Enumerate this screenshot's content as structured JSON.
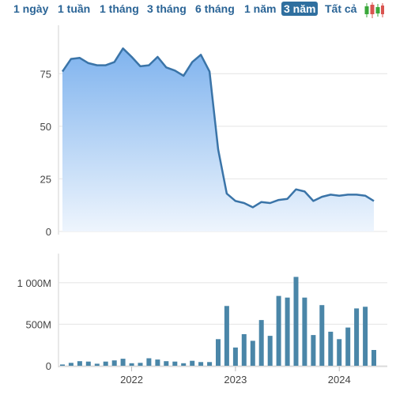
{
  "range_selector": {
    "buttons": [
      "1 ngày",
      "1 tuần",
      "1 tháng",
      "3 tháng",
      "6 tháng",
      "1 năm",
      "3 năm",
      "Tất cả"
    ],
    "active": "3 năm",
    "chart_type_icon": "candlestick-icon"
  },
  "colors": {
    "accent": "#2a6496",
    "line": "#3a74a8",
    "area_top": "#7fb3ee",
    "area_bottom": "#eef5fd",
    "bar": "#4a86a8",
    "active_button_bg": "#2f6f9f",
    "candle_up": "#3aa83a",
    "candle_down": "#d9534f"
  },
  "chart_data": [
    {
      "type": "area",
      "x_range": [
        "2021-05",
        "2024-05"
      ],
      "ylim": [
        0,
        95
      ],
      "y_ticks": [
        "0",
        "25",
        "50",
        "75"
      ],
      "y_tick_values": [
        0,
        25,
        50,
        75
      ],
      "x_ticks": [
        "2022",
        "2023",
        "2024"
      ],
      "x_tick_dates": [
        "2022-01",
        "2023-01",
        "2024-01"
      ],
      "grid": "horizontal",
      "points": [
        {
          "x": "2021-05",
          "y": 76
        },
        {
          "x": "2021-06",
          "y": 82
        },
        {
          "x": "2021-07",
          "y": 82.5
        },
        {
          "x": "2021-08",
          "y": 80
        },
        {
          "x": "2021-09",
          "y": 79
        },
        {
          "x": "2021-10",
          "y": 79
        },
        {
          "x": "2021-11",
          "y": 80.5
        },
        {
          "x": "2021-12",
          "y": 87
        },
        {
          "x": "2022-01",
          "y": 83
        },
        {
          "x": "2022-02",
          "y": 78.5
        },
        {
          "x": "2022-03",
          "y": 79
        },
        {
          "x": "2022-04",
          "y": 83
        },
        {
          "x": "2022-05",
          "y": 78
        },
        {
          "x": "2022-06",
          "y": 76.5
        },
        {
          "x": "2022-07",
          "y": 74
        },
        {
          "x": "2022-08",
          "y": 80.5
        },
        {
          "x": "2022-09",
          "y": 84
        },
        {
          "x": "2022-10",
          "y": 76
        },
        {
          "x": "2022-11",
          "y": 39
        },
        {
          "x": "2022-12",
          "y": 18
        },
        {
          "x": "2023-01",
          "y": 14.5
        },
        {
          "x": "2023-02",
          "y": 13.5
        },
        {
          "x": "2023-03",
          "y": 11.5
        },
        {
          "x": "2023-04",
          "y": 14
        },
        {
          "x": "2023-05",
          "y": 13.5
        },
        {
          "x": "2023-06",
          "y": 15
        },
        {
          "x": "2023-07",
          "y": 15.5
        },
        {
          "x": "2023-08",
          "y": 20
        },
        {
          "x": "2023-09",
          "y": 19
        },
        {
          "x": "2023-10",
          "y": 14.5
        },
        {
          "x": "2023-11",
          "y": 16.5
        },
        {
          "x": "2023-12",
          "y": 17.5
        },
        {
          "x": "2024-01",
          "y": 17
        },
        {
          "x": "2024-02",
          "y": 17.5
        },
        {
          "x": "2024-03",
          "y": 17.5
        },
        {
          "x": "2024-04",
          "y": 17
        },
        {
          "x": "2024-05",
          "y": 14.5
        }
      ]
    },
    {
      "type": "bar",
      "ylim": [
        0,
        1350
      ],
      "y_ticks": [
        "0",
        "500M",
        "1 000M"
      ],
      "y_tick_values": [
        0,
        500,
        1000
      ],
      "y_unit": "M",
      "x_ticks": [
        "2022",
        "2023",
        "2024"
      ],
      "grid": "horizontal",
      "bars": [
        {
          "x": "2021-05",
          "y": 15
        },
        {
          "x": "2021-06",
          "y": 35
        },
        {
          "x": "2021-07",
          "y": 55
        },
        {
          "x": "2021-08",
          "y": 50
        },
        {
          "x": "2021-09",
          "y": 25
        },
        {
          "x": "2021-10",
          "y": 50
        },
        {
          "x": "2021-11",
          "y": 65
        },
        {
          "x": "2021-12",
          "y": 85
        },
        {
          "x": "2022-01",
          "y": 30
        },
        {
          "x": "2022-02",
          "y": 35
        },
        {
          "x": "2022-03",
          "y": 90
        },
        {
          "x": "2022-04",
          "y": 75
        },
        {
          "x": "2022-05",
          "y": 55
        },
        {
          "x": "2022-06",
          "y": 50
        },
        {
          "x": "2022-07",
          "y": 30
        },
        {
          "x": "2022-08",
          "y": 60
        },
        {
          "x": "2022-09",
          "y": 45
        },
        {
          "x": "2022-10",
          "y": 45
        },
        {
          "x": "2022-11",
          "y": 320
        },
        {
          "x": "2022-12",
          "y": 720
        },
        {
          "x": "2023-01",
          "y": 220
        },
        {
          "x": "2023-02",
          "y": 380
        },
        {
          "x": "2023-03",
          "y": 300
        },
        {
          "x": "2023-04",
          "y": 550
        },
        {
          "x": "2023-05",
          "y": 360
        },
        {
          "x": "2023-06",
          "y": 840
        },
        {
          "x": "2023-07",
          "y": 820
        },
        {
          "x": "2023-08",
          "y": 1070
        },
        {
          "x": "2023-09",
          "y": 820
        },
        {
          "x": "2023-10",
          "y": 370
        },
        {
          "x": "2023-11",
          "y": 730
        },
        {
          "x": "2023-12",
          "y": 410
        },
        {
          "x": "2024-01",
          "y": 320
        },
        {
          "x": "2024-02",
          "y": 460
        },
        {
          "x": "2024-03",
          "y": 690
        },
        {
          "x": "2024-04",
          "y": 710
        },
        {
          "x": "2024-05",
          "y": 190
        }
      ]
    }
  ]
}
